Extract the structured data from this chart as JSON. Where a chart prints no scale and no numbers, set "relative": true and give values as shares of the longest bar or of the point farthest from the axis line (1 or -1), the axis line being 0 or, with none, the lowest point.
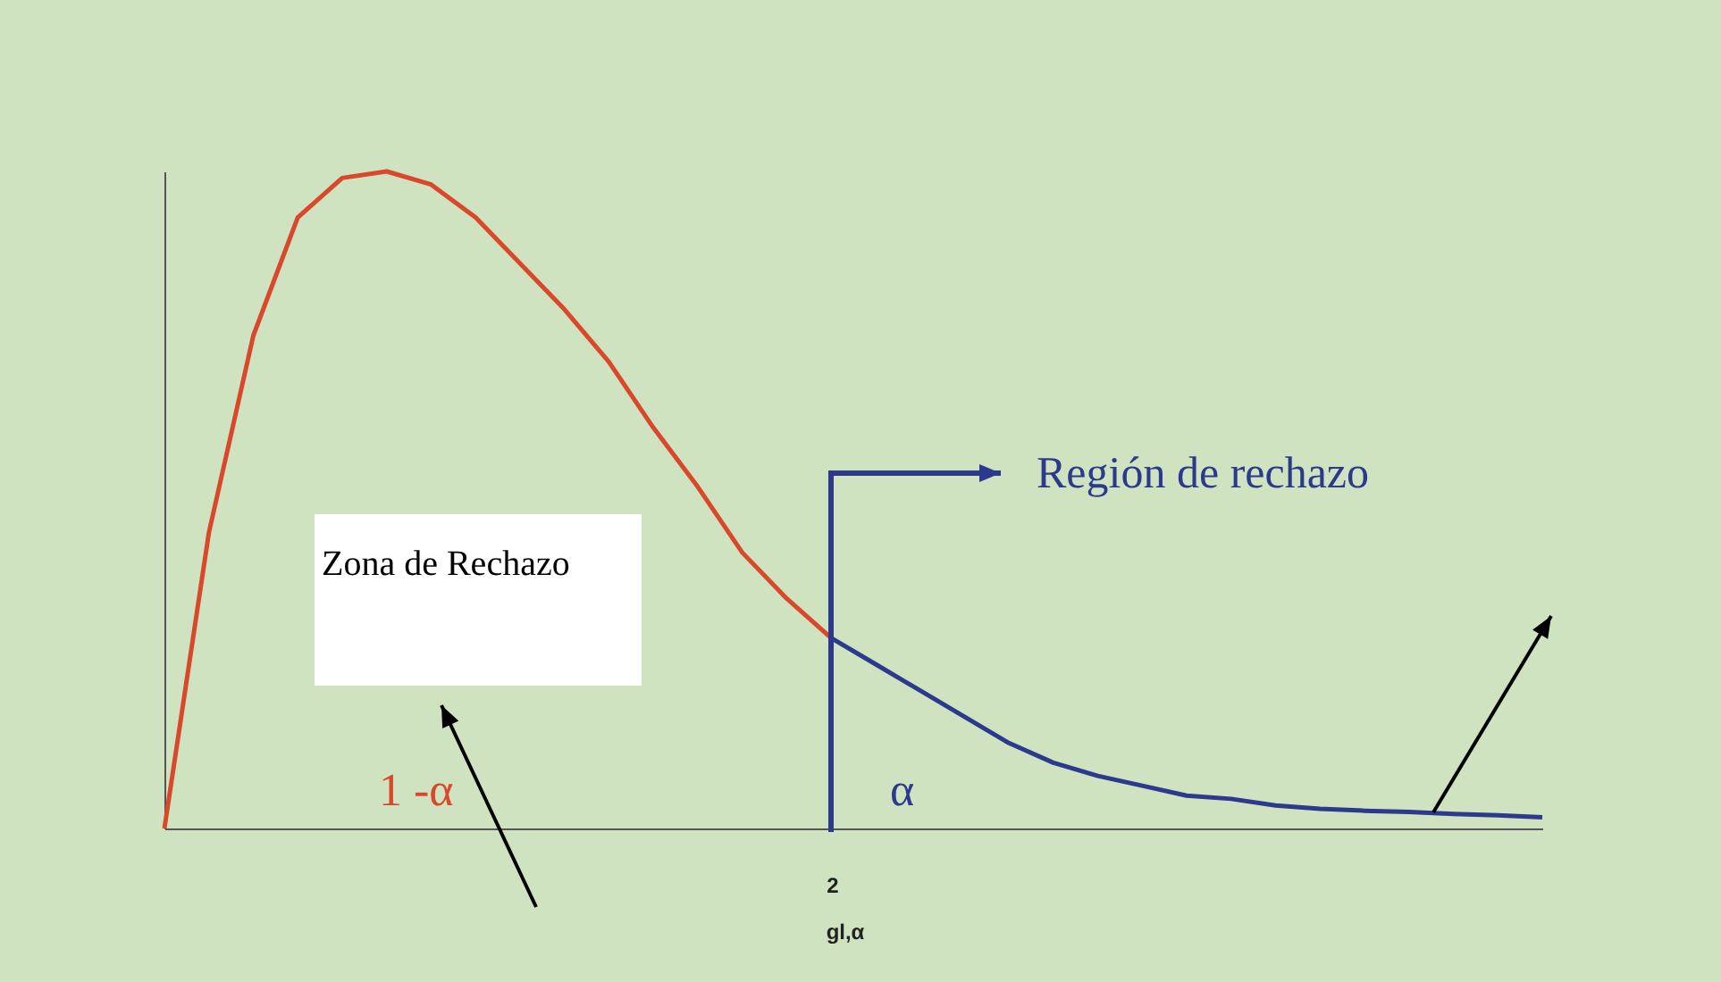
{
  "chart_data": {
    "type": "line",
    "relative": true,
    "tick_labels": false,
    "grid": false,
    "legend": false,
    "categories": [
      null,
      null,
      null,
      null,
      null,
      null,
      null,
      null,
      null,
      null,
      null,
      null,
      null,
      null,
      null,
      null,
      null,
      null,
      null,
      null,
      null,
      null,
      null,
      null,
      null,
      null,
      null,
      null,
      null,
      null,
      null,
      null
    ],
    "series": [
      {
        "color": "#d9482b",
        "values": [
          0,
          0.45,
          0.75,
          0.93,
          0.99,
          1,
          0.98,
          0.93,
          0.86,
          0.79,
          0.71,
          0.61,
          0.52,
          0.42,
          0.35,
          0.29,
          null,
          null,
          null,
          null,
          null,
          null,
          null,
          null,
          null,
          null,
          null,
          null,
          null,
          null,
          null,
          null
        ]
      },
      {
        "color": "#2b3a8c",
        "values": [
          null,
          null,
          null,
          null,
          null,
          null,
          null,
          null,
          null,
          null,
          null,
          null,
          null,
          null,
          null,
          0.29,
          0.25,
          0.21,
          0.17,
          0.13,
          0.1,
          0.08,
          0.065,
          0.05,
          0.045,
          0.035,
          0.03,
          0.027,
          0.025,
          0.022,
          0.02,
          0.017
        ]
      }
    ],
    "annotations": [
      "Región de rechazo",
      "Zona de Rechazo",
      "1 -α",
      "α",
      "2",
      "gl,α"
    ]
  }
}
